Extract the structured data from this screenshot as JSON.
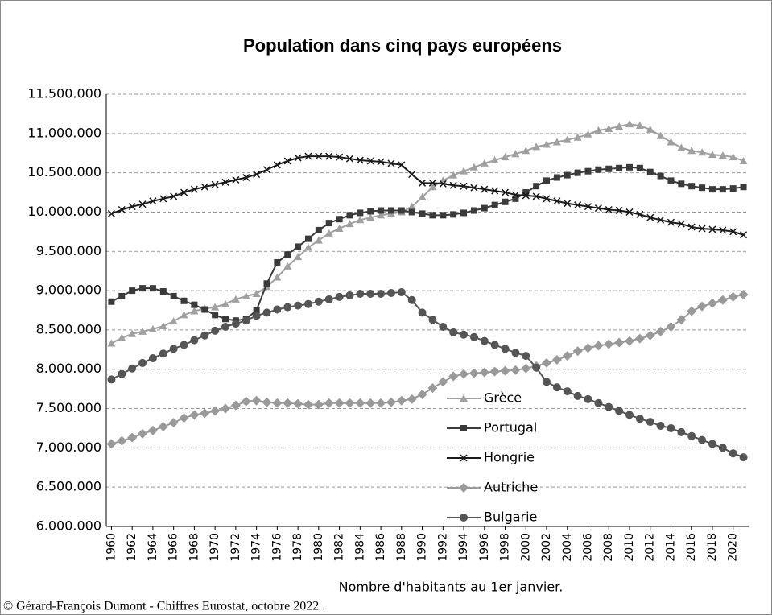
{
  "chart_data": {
    "type": "line",
    "title": "Population dans cinq pays européens",
    "x_label": "Nombre d'habitants au 1er janvier.",
    "source": "© Gérard-François Dumont - Chiffres  Eurostat, octobre 2022 .",
    "x": [
      1960,
      1961,
      1962,
      1963,
      1964,
      1965,
      1966,
      1967,
      1968,
      1969,
      1970,
      1971,
      1972,
      1973,
      1974,
      1975,
      1976,
      1977,
      1978,
      1979,
      1980,
      1981,
      1982,
      1983,
      1984,
      1985,
      1986,
      1987,
      1988,
      1989,
      1990,
      1991,
      1992,
      1993,
      1994,
      1995,
      1996,
      1997,
      1998,
      1999,
      2000,
      2001,
      2002,
      2003,
      2004,
      2005,
      2006,
      2007,
      2008,
      2009,
      2010,
      2011,
      2012,
      2013,
      2014,
      2015,
      2016,
      2017,
      2018,
      2019,
      2020,
      2021
    ],
    "xlim": [
      1959.5,
      2021.5
    ],
    "xticks": [
      1960,
      1962,
      1964,
      1966,
      1968,
      1970,
      1972,
      1974,
      1976,
      1978,
      1980,
      1982,
      1984,
      1986,
      1988,
      1990,
      1992,
      1994,
      1996,
      1998,
      2000,
      2002,
      2004,
      2006,
      2008,
      2010,
      2012,
      2014,
      2016,
      2018,
      2020
    ],
    "ylim": [
      6000000,
      11500000
    ],
    "yticks": [
      {
        "value": 6000000,
        "label": "6.000.000"
      },
      {
        "value": 6500000,
        "label": "6.500.000"
      },
      {
        "value": 7000000,
        "label": "7.000.000"
      },
      {
        "value": 7500000,
        "label": "7.500.000"
      },
      {
        "value": 8000000,
        "label": "8.000.000"
      },
      {
        "value": 8500000,
        "label": "8.500.000"
      },
      {
        "value": 9000000,
        "label": "9.000.000"
      },
      {
        "value": 9500000,
        "label": "9.500.000"
      },
      {
        "value": 10000000,
        "label": "10.000.000"
      },
      {
        "value": 10500000,
        "label": "10.500.000"
      },
      {
        "value": 11000000,
        "label": "11.000.000"
      },
      {
        "value": 11500000,
        "label": "11.500.000"
      }
    ],
    "grid": true,
    "series": [
      {
        "name": "Grèce",
        "color": "#a0a0a0",
        "marker": "triangle",
        "values": [
          8330000,
          8400000,
          8450000,
          8480000,
          8510000,
          8550000,
          8610000,
          8690000,
          8740000,
          8770000,
          8790000,
          8830000,
          8890000,
          8930000,
          8960000,
          9050000,
          9170000,
          9310000,
          9430000,
          9550000,
          9640000,
          9730000,
          9790000,
          9850000,
          9900000,
          9930000,
          9960000,
          9980000,
          10000000,
          10070000,
          10190000,
          10320000,
          10400000,
          10470000,
          10520000,
          10570000,
          10620000,
          10660000,
          10700000,
          10740000,
          10780000,
          10830000,
          10860000,
          10890000,
          10920000,
          10950000,
          10990000,
          11040000,
          11060000,
          11090000,
          11120000,
          11100000,
          11050000,
          10970000,
          10890000,
          10820000,
          10780000,
          10760000,
          10730000,
          10720000,
          10700000,
          10650000
        ]
      },
      {
        "name": "Portugal",
        "color": "#3a3a3a",
        "marker": "square",
        "values": [
          8860000,
          8930000,
          9000000,
          9030000,
          9030000,
          8990000,
          8930000,
          8870000,
          8820000,
          8760000,
          8690000,
          8640000,
          8620000,
          8640000,
          8750000,
          9090000,
          9360000,
          9460000,
          9560000,
          9660000,
          9770000,
          9860000,
          9910000,
          9960000,
          9990000,
          10010000,
          10020000,
          10020000,
          10020000,
          10000000,
          9980000,
          9960000,
          9960000,
          9970000,
          9990000,
          10020000,
          10050000,
          10090000,
          10130000,
          10170000,
          10250000,
          10330000,
          10400000,
          10440000,
          10470000,
          10500000,
          10520000,
          10540000,
          10550000,
          10560000,
          10570000,
          10560000,
          10510000,
          10460000,
          10400000,
          10360000,
          10330000,
          10310000,
          10290000,
          10290000,
          10300000,
          10320000
        ]
      },
      {
        "name": "Hongrie",
        "color": "#1a1a1a",
        "marker": "cross",
        "values": [
          9980000,
          10030000,
          10070000,
          10100000,
          10140000,
          10170000,
          10200000,
          10250000,
          10290000,
          10320000,
          10350000,
          10380000,
          10410000,
          10440000,
          10480000,
          10540000,
          10600000,
          10650000,
          10690000,
          10710000,
          10710000,
          10710000,
          10700000,
          10680000,
          10660000,
          10650000,
          10640000,
          10620000,
          10600000,
          10480000,
          10370000,
          10370000,
          10360000,
          10340000,
          10330000,
          10310000,
          10290000,
          10270000,
          10250000,
          10220000,
          10210000,
          10200000,
          10170000,
          10140000,
          10110000,
          10090000,
          10070000,
          10050000,
          10030000,
          10020000,
          10000000,
          9970000,
          9930000,
          9900000,
          9870000,
          9850000,
          9810000,
          9790000,
          9780000,
          9770000,
          9750000,
          9710000
        ]
      },
      {
        "name": "Autriche",
        "color": "#999999",
        "marker": "diamond",
        "values": [
          7050000,
          7090000,
          7130000,
          7180000,
          7220000,
          7270000,
          7320000,
          7380000,
          7420000,
          7440000,
          7470000,
          7500000,
          7540000,
          7590000,
          7600000,
          7580000,
          7570000,
          7570000,
          7560000,
          7550000,
          7550000,
          7570000,
          7570000,
          7570000,
          7570000,
          7570000,
          7570000,
          7580000,
          7600000,
          7620000,
          7680000,
          7760000,
          7840000,
          7910000,
          7940000,
          7950000,
          7960000,
          7970000,
          7980000,
          7990000,
          8010000,
          8040000,
          8080000,
          8120000,
          8170000,
          8230000,
          8270000,
          8300000,
          8320000,
          8340000,
          8360000,
          8390000,
          8430000,
          8480000,
          8540000,
          8630000,
          8740000,
          8800000,
          8840000,
          8880000,
          8920000,
          8950000
        ]
      },
      {
        "name": "Bulgarie",
        "color": "#555555",
        "marker": "circle",
        "values": [
          7870000,
          7940000,
          8010000,
          8080000,
          8140000,
          8200000,
          8260000,
          8310000,
          8370000,
          8430000,
          8490000,
          8540000,
          8580000,
          8620000,
          8680000,
          8720000,
          8760000,
          8790000,
          8810000,
          8830000,
          8860000,
          8890000,
          8920000,
          8940000,
          8960000,
          8960000,
          8960000,
          8970000,
          8980000,
          8880000,
          8720000,
          8630000,
          8540000,
          8470000,
          8440000,
          8410000,
          8360000,
          8310000,
          8260000,
          8210000,
          8170000,
          8020000,
          7840000,
          7770000,
          7720000,
          7660000,
          7620000,
          7570000,
          7520000,
          7470000,
          7420000,
          7370000,
          7330000,
          7280000,
          7250000,
          7200000,
          7150000,
          7100000,
          7050000,
          7000000,
          6930000,
          6880000
        ]
      }
    ]
  }
}
